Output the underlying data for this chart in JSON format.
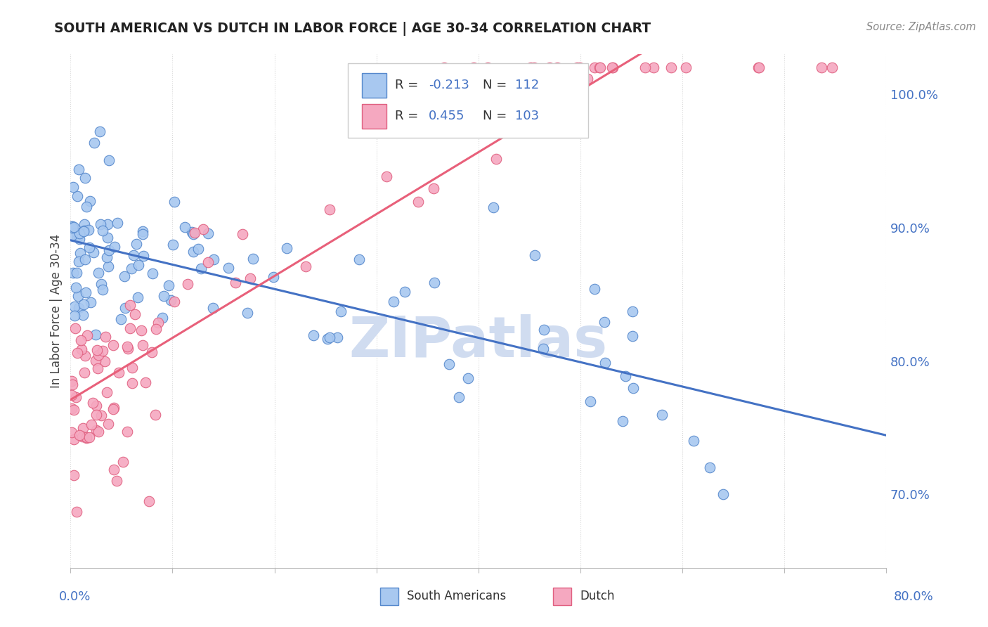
{
  "title": "SOUTH AMERICAN VS DUTCH IN LABOR FORCE | AGE 30-34 CORRELATION CHART",
  "source": "Source: ZipAtlas.com",
  "ylabel": "In Labor Force | Age 30-34",
  "ytick_labels": [
    "70.0%",
    "80.0%",
    "90.0%",
    "100.0%"
  ],
  "ytick_values": [
    0.7,
    0.8,
    0.9,
    1.0
  ],
  "xmin": 0.0,
  "xmax": 0.8,
  "ymin": 0.645,
  "ymax": 1.03,
  "blue_R": -0.213,
  "blue_N": 112,
  "pink_R": 0.455,
  "pink_N": 103,
  "blue_color": "#A8C8F0",
  "pink_color": "#F5A8C0",
  "blue_edge_color": "#5588CC",
  "pink_edge_color": "#E06080",
  "blue_line_color": "#4472C4",
  "pink_line_color": "#E8607A",
  "watermark": "ZIPatlas",
  "watermark_color": "#D0DCF0",
  "background_color": "#FFFFFF",
  "grid_color": "#D8D8D8",
  "title_color": "#222222",
  "source_color": "#888888",
  "axis_label_color": "#4472C4",
  "ylabel_color": "#444444",
  "legend_R_color": "#333333",
  "legend_N_color": "#4472C4",
  "bottom_legend_color": "#333333"
}
